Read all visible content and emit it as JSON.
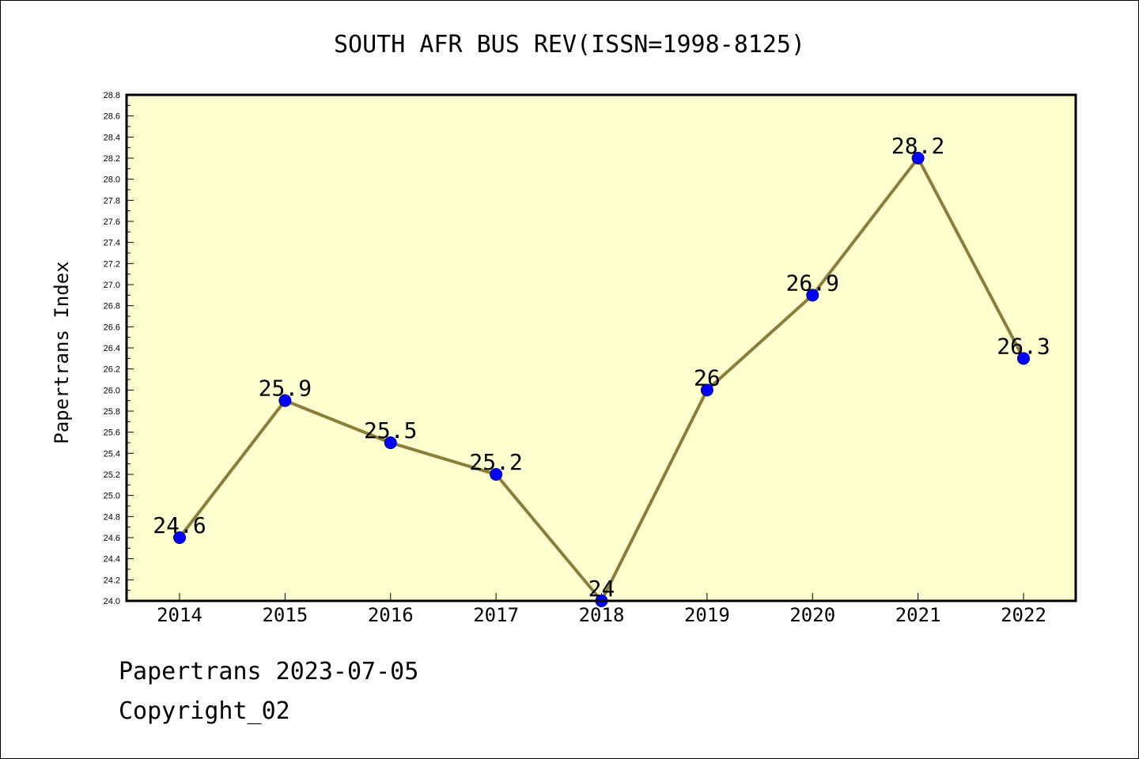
{
  "colors": {
    "plot_background": "#ffffd0",
    "line": "#8b7d3a",
    "marker_fill": "#0000ff",
    "marker_edge": "#000080",
    "text": "#000000"
  },
  "footer": {
    "line1": "Papertrans 2023-07-05",
    "line2": "Copyright_02"
  },
  "chart_data": {
    "type": "line",
    "title": "SOUTH AFR BUS REV(ISSN=1998-8125)",
    "xlabel": "",
    "ylabel": "Papertrans Index",
    "categories": [
      "2014",
      "2015",
      "2016",
      "2017",
      "2018",
      "2019",
      "2020",
      "2021",
      "2022"
    ],
    "series": [
      {
        "values": [
          24.6,
          25.9,
          25.5,
          25.2,
          24.0,
          26.0,
          26.9,
          28.2,
          26.3
        ],
        "labels": [
          "24.6",
          "25.9",
          "25.5",
          "25.2",
          "24",
          "26",
          "26.9",
          "28.2",
          "26.3"
        ]
      }
    ],
    "ylim": [
      24.0,
      28.8
    ],
    "ytick_step": 0.2,
    "ytick_labels": [
      "24.0",
      "24.2",
      "24.4",
      "24.6",
      "24.8",
      "25.0",
      "25.2",
      "25.4",
      "25.6",
      "25.8",
      "26.0",
      "26.2",
      "26.4",
      "26.6",
      "26.8",
      "27.0",
      "27.2",
      "27.4",
      "27.6",
      "27.8",
      "28.0",
      "28.2",
      "28.4",
      "28.6",
      "28.8"
    ],
    "grid": false,
    "legend": "none"
  }
}
